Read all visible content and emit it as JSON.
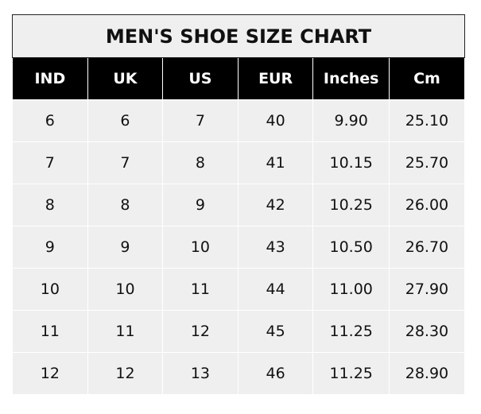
{
  "title": "MEN'S SHOE SIZE CHART",
  "headers": [
    "IND",
    "UK",
    "US",
    "EUR",
    "Inches",
    "Cm"
  ],
  "rows": [
    [
      "6",
      "6",
      "7",
      "40",
      "9.90",
      "25.10"
    ],
    [
      "7",
      "7",
      "8",
      "41",
      "10.15",
      "25.70"
    ],
    [
      "8",
      "8",
      "9",
      "42",
      "10.25",
      "26.00"
    ],
    [
      "9",
      "9",
      "10",
      "43",
      "10.50",
      "26.70"
    ],
    [
      "10",
      "10",
      "11",
      "44",
      "11.00",
      "27.90"
    ],
    [
      "11",
      "11",
      "12",
      "45",
      "11.25",
      "28.30"
    ],
    [
      "12",
      "12",
      "13",
      "46",
      "11.25",
      "28.90"
    ]
  ],
  "colors": {
    "header_bg": "#000000",
    "cell_bg": "#efefef"
  }
}
